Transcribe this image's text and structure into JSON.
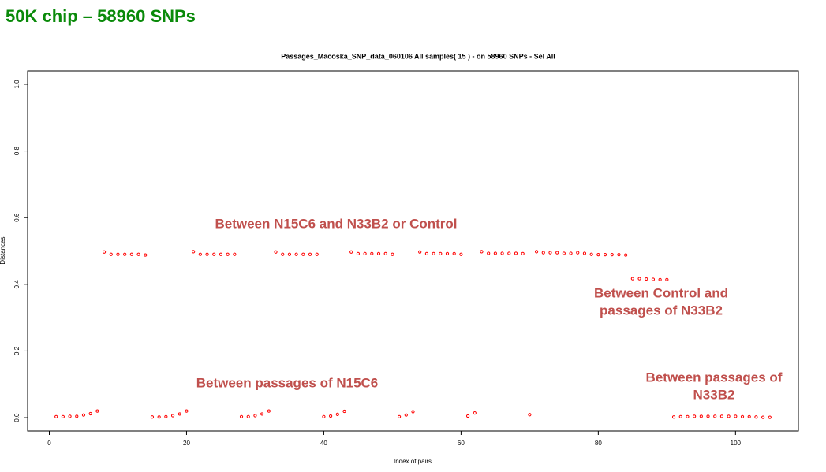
{
  "header": {
    "title": "50K chip – 58960 SNPs"
  },
  "chart_data": {
    "type": "scatter",
    "title": "Passages_Macoska_SNP_data_060106  All samples( 15 ) - on  58960 SNPs - Sel All",
    "x_label": "Index of pairs",
    "y_label": "Distances",
    "x": [
      1,
      2,
      3,
      4,
      5,
      6,
      7,
      8,
      9,
      10,
      11,
      12,
      13,
      14,
      15,
      16,
      17,
      18,
      19,
      20,
      21,
      22,
      23,
      24,
      25,
      26,
      27,
      28,
      29,
      30,
      31,
      32,
      33,
      34,
      35,
      36,
      37,
      38,
      39,
      40,
      41,
      42,
      43,
      44,
      45,
      46,
      47,
      48,
      49,
      50,
      51,
      52,
      53,
      54,
      55,
      56,
      57,
      58,
      59,
      60,
      61,
      62,
      63,
      64,
      65,
      66,
      67,
      68,
      69,
      70,
      71,
      72,
      73,
      74,
      75,
      76,
      77,
      78,
      79,
      80,
      81,
      82,
      83,
      84,
      85,
      86,
      87,
      88,
      89,
      90,
      91,
      92,
      93,
      94,
      95,
      96,
      97,
      98,
      99,
      100,
      101,
      102,
      103,
      104,
      105
    ],
    "series": [
      {
        "name": "Distances",
        "color": "#ff0000",
        "values": [
          0.003,
          0.003,
          0.004,
          0.004,
          0.008,
          0.012,
          0.02,
          0.497,
          0.49,
          0.49,
          0.49,
          0.49,
          0.49,
          0.488,
          0.002,
          0.002,
          0.003,
          0.006,
          0.011,
          0.02,
          0.498,
          0.49,
          0.49,
          0.49,
          0.49,
          0.49,
          0.49,
          0.003,
          0.003,
          0.006,
          0.011,
          0.02,
          0.497,
          0.49,
          0.49,
          0.49,
          0.49,
          0.49,
          0.49,
          0.003,
          0.005,
          0.01,
          0.019,
          0.497,
          0.492,
          0.492,
          0.492,
          0.492,
          0.492,
          0.49,
          0.003,
          0.008,
          0.018,
          0.497,
          0.492,
          0.492,
          0.492,
          0.492,
          0.492,
          0.49,
          0.005,
          0.014,
          0.498,
          0.493,
          0.493,
          0.493,
          0.493,
          0.493,
          0.492,
          0.009,
          0.498,
          0.495,
          0.495,
          0.495,
          0.493,
          0.493,
          0.495,
          0.493,
          0.49,
          0.489,
          0.489,
          0.489,
          0.489,
          0.488,
          0.417,
          0.417,
          0.416,
          0.415,
          0.414,
          0.414,
          0.002,
          0.003,
          0.003,
          0.004,
          0.004,
          0.004,
          0.004,
          0.004,
          0.004,
          0.004,
          0.003,
          0.003,
          0.002,
          0.001,
          0.001
        ]
      }
    ],
    "xlim": [
      -3.16,
      109.16
    ],
    "ylim": [
      -0.04,
      1.04
    ],
    "xticks": [
      0,
      20,
      40,
      60,
      80,
      100
    ],
    "yticks": [
      {
        "value": 0,
        "label": "0.0"
      },
      0.2,
      0.4,
      0.6,
      0.8,
      {
        "value": 1,
        "label": "1.0"
      }
    ],
    "annotations": [
      {
        "lines": [
          "Between N15C6 and N33B2 or Control"
        ]
      },
      {
        "lines": [
          "Between passages of N15C6"
        ]
      },
      {
        "lines": [
          "Between Control and",
          "passages of N33B2"
        ]
      },
      {
        "lines": [
          "Between passages of",
          "N33B2"
        ]
      }
    ]
  }
}
